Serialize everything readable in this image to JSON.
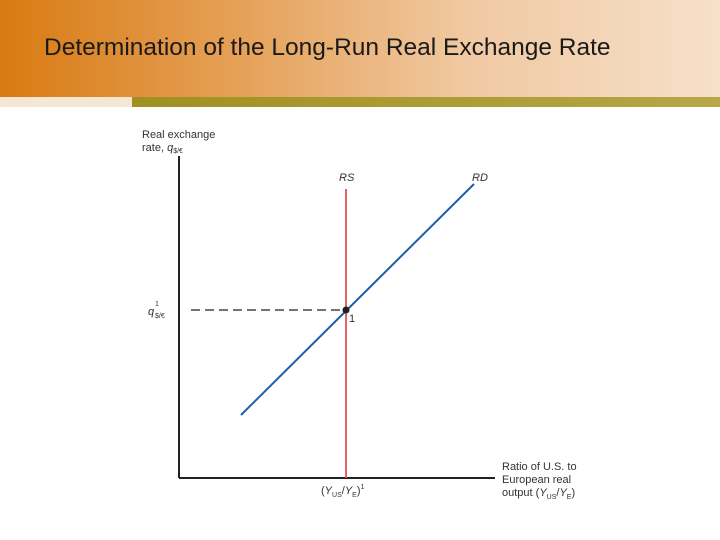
{
  "slide": {
    "title": "Determination of the Long-Run Real Exchange Rate"
  },
  "diagram": {
    "y_axis_label_line1": "Real exchange",
    "y_axis_label_line2_prefix": "rate, ",
    "y_axis_label_var": "q",
    "y_axis_label_sub": "$/€",
    "x_axis_label_line1": "Ratio of U.S. to",
    "x_axis_label_line2": "European real",
    "x_axis_label_line3_prefix": "output (",
    "x_axis_label_Y1": "Y",
    "x_axis_label_sub1": "US",
    "x_axis_label_slash": "/",
    "x_axis_label_Y2": "Y",
    "x_axis_label_sub2": "E",
    "x_axis_label_close": ")",
    "rs_label": "RS",
    "rd_label": "RD",
    "equilibrium_label": "1",
    "q1_var": "q",
    "q1_sup": "1",
    "q1_sub": "$/€",
    "x1_open": "(",
    "x1_Y1": "Y",
    "x1_sub1": "US",
    "x1_slash": "/",
    "x1_Y2": "Y",
    "x1_sub2": "E",
    "x1_close": ")",
    "x1_sup": "1",
    "colors": {
      "axis": "#222222",
      "rs_line": "#e05555",
      "rd_line": "#1f5ea8",
      "dashed": "#222222",
      "point": "#222222"
    }
  }
}
